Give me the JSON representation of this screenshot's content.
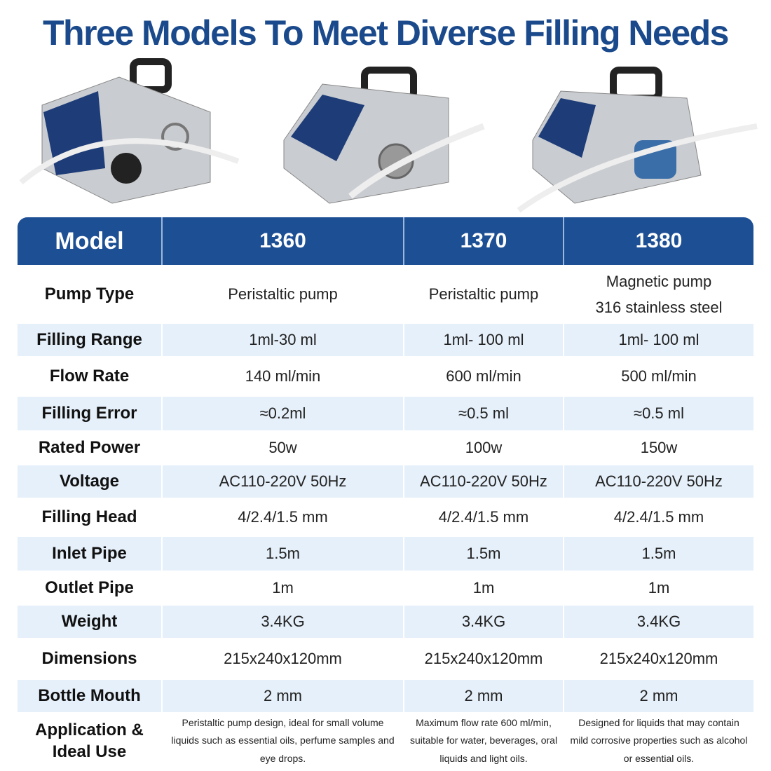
{
  "header": {
    "title": "Three Models To Meet Diverse Filling Needs"
  },
  "table": {
    "columns": [
      "Model",
      "1360",
      "1370",
      "1380"
    ],
    "rows": [
      [
        "Pump Type",
        "Peristaltic pump",
        "Peristaltic pump",
        "Magnetic pump\n316 stainless steel"
      ],
      [
        "Filling Range",
        "1ml-30 ml",
        "1ml- 100 ml",
        "1ml- 100 ml"
      ],
      [
        "Flow Rate",
        "140 ml/min",
        "600 ml/min",
        "500 ml/min"
      ],
      [
        "Filling Error",
        "≈0.2ml",
        "≈0.5 ml",
        "≈0.5 ml"
      ],
      [
        "Rated Power",
        "50w",
        "100w",
        "150w"
      ],
      [
        "Voltage",
        "AC110-220V 50Hz",
        "AC110-220V 50Hz",
        "AC110-220V 50Hz"
      ],
      [
        "Filling Head",
        "4/2.4/1.5 mm",
        "4/2.4/1.5 mm",
        "4/2.4/1.5 mm"
      ],
      [
        "Inlet Pipe",
        "1.5m",
        "1.5m",
        "1.5m"
      ],
      [
        "Outlet Pipe",
        "1m",
        "1m",
        "1m"
      ],
      [
        "Weight",
        "3.4KG",
        "3.4KG",
        "3.4KG"
      ],
      [
        "Dimensions",
        "215x240x120mm",
        "215x240x120mm",
        "215x240x120mm"
      ],
      [
        "Bottle Mouth",
        "2 mm",
        "2 mm",
        "2 mm"
      ],
      [
        "Application & Ideal Use",
        "Peristaltic pump design, ideal for small volume liquids such as essential oils, perfume samples and eye drops.",
        "Maximum flow rate 600 ml/min, suitable for water, beverages, oral liquids and light oils.",
        "Designed for liquids that may contain mild corrosive properties such as alcohol or essential oils."
      ]
    ]
  }
}
